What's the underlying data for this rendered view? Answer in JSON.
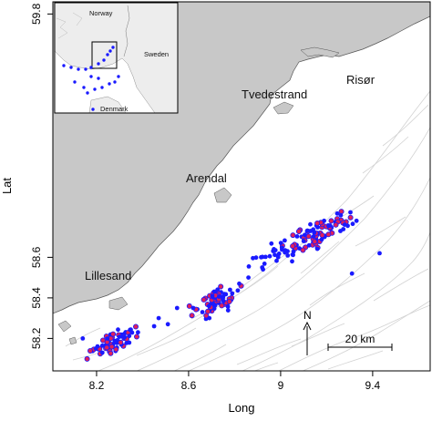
{
  "axes": {
    "xlabel": "Long",
    "ylabel": "Lat",
    "xlim": [
      8.01,
      9.65
    ],
    "ylim": [
      58.04,
      59.86
    ],
    "xticks": [
      {
        "value": 8.2,
        "label": "8.2"
      },
      {
        "value": 8.6,
        "label": "8.6"
      },
      {
        "value": 9.0,
        "label": "9"
      },
      {
        "value": 9.4,
        "label": "9.4"
      }
    ],
    "yticks": [
      {
        "value": 58.2,
        "label": "58.2"
      },
      {
        "value": 58.4,
        "label": "58.4"
      },
      {
        "value": 58.6,
        "label": "58.6"
      },
      {
        "value": 59.8,
        "label": "59.8"
      }
    ]
  },
  "places": {
    "lillesand": "Lillesand",
    "arendal": "Arendal",
    "tvedestrand": "Tvedestrand",
    "risor": "Risør"
  },
  "north_arrow": {
    "label": "N"
  },
  "scale_bar": {
    "label": "20 km"
  },
  "inset": {
    "norway": "Norway",
    "sweden": "Sweden",
    "denmark": "Denmark"
  },
  "colors": {
    "land": "#c8c8c8",
    "sea": "#ffffff",
    "points_outer": "#1a1aff",
    "points_inner": "#e0205a",
    "contours": "#cfcfcf"
  },
  "chart_data": {
    "type": "scatter",
    "x_name": "Long",
    "y_name": "Lat",
    "clusters": [
      {
        "center": [
          8.27,
          58.18
        ],
        "spread": [
          0.05,
          0.03
        ],
        "count": 70,
        "dense": true
      },
      {
        "center": [
          8.73,
          58.39
        ],
        "spread": [
          0.04,
          0.04
        ],
        "count": 75,
        "dense": true
      },
      {
        "center": [
          9.18,
          58.72
        ],
        "spread": [
          0.08,
          0.04
        ],
        "count": 90,
        "dense": true
      },
      {
        "center": [
          8.96,
          58.61
        ],
        "spread": [
          0.05,
          0.03
        ],
        "count": 25,
        "dense": false
      }
    ],
    "scattered_points": [
      [
        8.14,
        58.2
      ],
      [
        8.38,
        58.23
      ],
      [
        8.47,
        58.3
      ],
      [
        8.55,
        58.35
      ],
      [
        8.62,
        58.35
      ],
      [
        8.66,
        58.33
      ],
      [
        8.82,
        58.47
      ],
      [
        8.86,
        58.5
      ],
      [
        8.92,
        58.55
      ],
      [
        9.03,
        58.63
      ],
      [
        9.1,
        58.68
      ],
      [
        9.26,
        58.73
      ],
      [
        9.31,
        58.52
      ],
      [
        9.43,
        58.62
      ],
      [
        8.51,
        58.27
      ],
      [
        8.69,
        58.3
      ],
      [
        8.78,
        58.44
      ],
      [
        9.05,
        58.58
      ],
      [
        9.33,
        58.78
      ],
      [
        8.45,
        58.26
      ]
    ]
  }
}
